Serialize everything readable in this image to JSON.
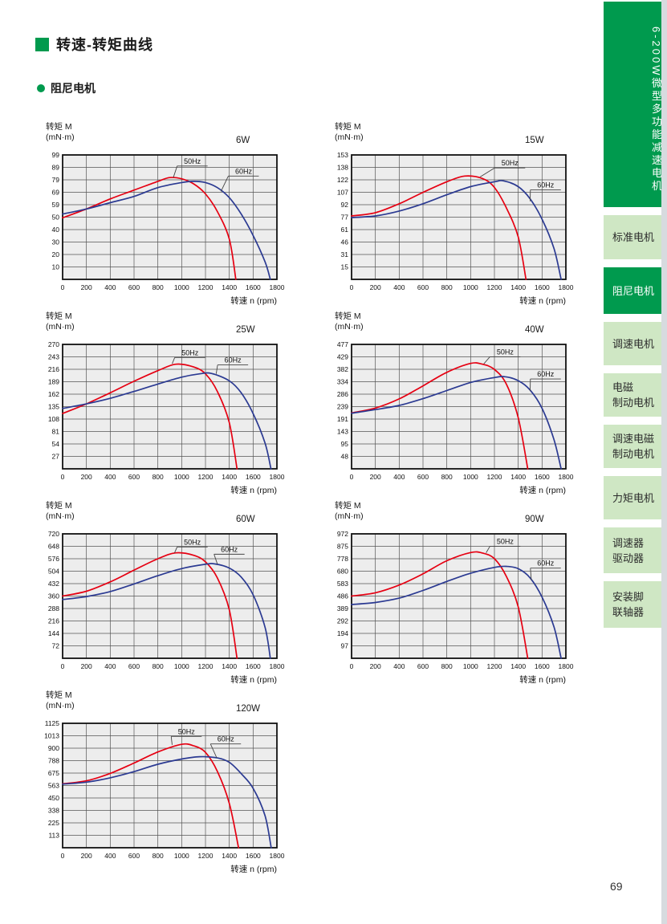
{
  "page": {
    "title": "转速-转矩曲线",
    "section": "阻尼电机",
    "page_number": "69"
  },
  "sidebar": {
    "vertical_title": "6-200W微型多功能减速电机",
    "items": [
      {
        "label": "标准电机",
        "lines": [
          "标准电机"
        ],
        "active": false
      },
      {
        "label": "阻尼电机",
        "lines": [
          "阻尼电机"
        ],
        "active": true
      },
      {
        "label": "调速电机",
        "lines": [
          "调速电机"
        ],
        "active": false
      },
      {
        "label": "电磁制动电机",
        "lines": [
          "电磁",
          "制动电机"
        ],
        "active": false
      },
      {
        "label": "调速电磁制动电机",
        "lines": [
          "调速电磁",
          "制动电机"
        ],
        "active": false
      },
      {
        "label": "力矩电机",
        "lines": [
          "力矩电机"
        ],
        "active": false
      },
      {
        "label": "调速器驱动器",
        "lines": [
          "调速器",
          "驱动器"
        ],
        "active": false
      },
      {
        "label": "安装脚联轴器",
        "lines": [
          "安装脚",
          "联轴器"
        ],
        "active": false
      }
    ]
  },
  "colors": {
    "green": "#009a4e",
    "light_green": "#cfe7c4",
    "red": "#e60012",
    "blue": "#2b3a92",
    "grid_bg": "#ededed",
    "grid_line": "#555555",
    "plot_border": "#111111",
    "strip": "#d7dbdf"
  },
  "charts_common": {
    "ylabel_line1": "转矩 M",
    "ylabel_line2": "(mN·m)",
    "xlabel": "转速 n (rpm)",
    "x_ticks": [
      0,
      200,
      400,
      600,
      800,
      1000,
      1200,
      1400,
      1600,
      1800
    ],
    "x_max": 1800,
    "legend": [
      "50Hz",
      "60Hz"
    ]
  },
  "chart_data": [
    {
      "type": "line",
      "title": "6W",
      "y_max": 99,
      "y_ticks": [
        99,
        89,
        79,
        69,
        59,
        50,
        40,
        30,
        20,
        10
      ],
      "series": [
        {
          "name": "50Hz",
          "color": "red",
          "points": [
            [
              0,
              49
            ],
            [
              200,
              56
            ],
            [
              400,
              64
            ],
            [
              600,
              71
            ],
            [
              800,
              78
            ],
            [
              900,
              81
            ],
            [
              1000,
              80
            ],
            [
              1100,
              76
            ],
            [
              1200,
              68
            ],
            [
              1300,
              54
            ],
            [
              1400,
              32
            ],
            [
              1455,
              0
            ]
          ]
        },
        {
          "name": "60Hz",
          "color": "blue",
          "points": [
            [
              0,
              52
            ],
            [
              200,
              56
            ],
            [
              400,
              61
            ],
            [
              600,
              66
            ],
            [
              800,
              73
            ],
            [
              1000,
              77
            ],
            [
              1100,
              78
            ],
            [
              1200,
              77
            ],
            [
              1300,
              73
            ],
            [
              1400,
              65
            ],
            [
              1500,
              52
            ],
            [
              1600,
              35
            ],
            [
              1700,
              14
            ],
            [
              1745,
              0
            ]
          ]
        }
      ],
      "labels": [
        {
          "text": "50Hz",
          "x": 1090,
          "y": 94,
          "tx": 930,
          "ty": 81
        },
        {
          "text": "60Hz",
          "x": 1520,
          "y": 86,
          "tx": 1330,
          "ty": 70
        }
      ]
    },
    {
      "type": "line",
      "title": "15W",
      "y_max": 153,
      "y_ticks": [
        153,
        138,
        122,
        107,
        92,
        77,
        61,
        46,
        31,
        15
      ],
      "series": [
        {
          "name": "50Hz",
          "color": "red",
          "points": [
            [
              0,
              78
            ],
            [
              200,
              82
            ],
            [
              400,
              93
            ],
            [
              600,
              107
            ],
            [
              800,
              120
            ],
            [
              950,
              127
            ],
            [
              1100,
              124
            ],
            [
              1200,
              113
            ],
            [
              1300,
              88
            ],
            [
              1400,
              52
            ],
            [
              1465,
              0
            ]
          ]
        },
        {
          "name": "60Hz",
          "color": "blue",
          "points": [
            [
              0,
              76
            ],
            [
              200,
              78
            ],
            [
              400,
              84
            ],
            [
              600,
              93
            ],
            [
              800,
              104
            ],
            [
              1000,
              114
            ],
            [
              1200,
              120
            ],
            [
              1280,
              121
            ],
            [
              1400,
              114
            ],
            [
              1500,
              99
            ],
            [
              1600,
              74
            ],
            [
              1700,
              38
            ],
            [
              1760,
              0
            ]
          ]
        }
      ],
      "labels": [
        {
          "text": "50Hz",
          "x": 1330,
          "y": 143,
          "tx": 1080,
          "ty": 126
        },
        {
          "text": "60Hz",
          "x": 1630,
          "y": 116,
          "tx": 1500,
          "ty": 96
        }
      ]
    },
    {
      "type": "line",
      "title": "25W",
      "y_max": 270,
      "y_ticks": [
        270,
        243,
        216,
        189,
        162,
        135,
        108,
        81,
        54,
        27
      ],
      "series": [
        {
          "name": "50Hz",
          "color": "red",
          "points": [
            [
              0,
              120
            ],
            [
              200,
              141
            ],
            [
              400,
              165
            ],
            [
              600,
              190
            ],
            [
              800,
              213
            ],
            [
              950,
              227
            ],
            [
              1100,
              221
            ],
            [
              1200,
              206
            ],
            [
              1300,
              168
            ],
            [
              1400,
              100
            ],
            [
              1465,
              0
            ]
          ]
        },
        {
          "name": "60Hz",
          "color": "blue",
          "points": [
            [
              0,
              131
            ],
            [
              200,
              141
            ],
            [
              400,
              153
            ],
            [
              600,
              168
            ],
            [
              800,
              184
            ],
            [
              1000,
              199
            ],
            [
              1150,
              206
            ],
            [
              1250,
              207
            ],
            [
              1400,
              191
            ],
            [
              1500,
              165
            ],
            [
              1600,
              120
            ],
            [
              1700,
              56
            ],
            [
              1750,
              0
            ]
          ]
        }
      ],
      "labels": [
        {
          "text": "50Hz",
          "x": 1070,
          "y": 252,
          "tx": 920,
          "ty": 228
        },
        {
          "text": "60Hz",
          "x": 1430,
          "y": 236,
          "tx": 1290,
          "ty": 206
        }
      ]
    },
    {
      "type": "line",
      "title": "40W",
      "y_max": 477,
      "y_ticks": [
        477,
        429,
        382,
        334,
        286,
        239,
        191,
        143,
        95,
        48
      ],
      "series": [
        {
          "name": "50Hz",
          "color": "red",
          "points": [
            [
              0,
              214
            ],
            [
              200,
              233
            ],
            [
              400,
              268
            ],
            [
              600,
              318
            ],
            [
              800,
              370
            ],
            [
              1000,
              404
            ],
            [
              1100,
              401
            ],
            [
              1200,
              381
            ],
            [
              1300,
              325
            ],
            [
              1400,
              195
            ],
            [
              1480,
              0
            ]
          ]
        },
        {
          "name": "60Hz",
          "color": "blue",
          "points": [
            [
              0,
              213
            ],
            [
              200,
              227
            ],
            [
              400,
              243
            ],
            [
              600,
              269
            ],
            [
              800,
              300
            ],
            [
              1000,
              331
            ],
            [
              1200,
              350
            ],
            [
              1290,
              353
            ],
            [
              1400,
              338
            ],
            [
              1500,
              302
            ],
            [
              1600,
              232
            ],
            [
              1700,
              112
            ],
            [
              1760,
              0
            ]
          ]
        }
      ],
      "labels": [
        {
          "text": "50Hz",
          "x": 1290,
          "y": 448,
          "tx": 1110,
          "ty": 402
        },
        {
          "text": "60Hz",
          "x": 1630,
          "y": 363,
          "tx": 1500,
          "ty": 298
        }
      ]
    },
    {
      "type": "line",
      "title": "60W",
      "y_max": 720,
      "y_ticks": [
        720,
        648,
        576,
        504,
        432,
        360,
        288,
        216,
        144,
        72
      ],
      "series": [
        {
          "name": "50Hz",
          "color": "red",
          "points": [
            [
              0,
              360
            ],
            [
              200,
              388
            ],
            [
              400,
              442
            ],
            [
              600,
              510
            ],
            [
              800,
              576
            ],
            [
              950,
              610
            ],
            [
              1100,
              596
            ],
            [
              1200,
              558
            ],
            [
              1300,
              465
            ],
            [
              1400,
              280
            ],
            [
              1465,
              0
            ]
          ]
        },
        {
          "name": "60Hz",
          "color": "blue",
          "points": [
            [
              0,
              340
            ],
            [
              200,
              357
            ],
            [
              400,
              386
            ],
            [
              600,
              430
            ],
            [
              800,
              478
            ],
            [
              1000,
              519
            ],
            [
              1200,
              544
            ],
            [
              1280,
              546
            ],
            [
              1400,
              522
            ],
            [
              1500,
              470
            ],
            [
              1600,
              368
            ],
            [
              1700,
              180
            ],
            [
              1745,
              0
            ]
          ]
        }
      ],
      "labels": [
        {
          "text": "50Hz",
          "x": 1090,
          "y": 672,
          "tx": 940,
          "ty": 610
        },
        {
          "text": "60Hz",
          "x": 1400,
          "y": 630,
          "tx": 1300,
          "ty": 545
        }
      ]
    },
    {
      "type": "line",
      "title": "90W",
      "y_max": 972,
      "y_ticks": [
        972,
        875,
        778,
        680,
        583,
        486,
        389,
        292,
        194,
        97
      ],
      "series": [
        {
          "name": "50Hz",
          "color": "red",
          "points": [
            [
              0,
              486
            ],
            [
              200,
              512
            ],
            [
              400,
              572
            ],
            [
              600,
              660
            ],
            [
              800,
              762
            ],
            [
              1000,
              826
            ],
            [
              1100,
              822
            ],
            [
              1200,
              778
            ],
            [
              1300,
              640
            ],
            [
              1400,
              400
            ],
            [
              1480,
              0
            ]
          ]
        },
        {
          "name": "60Hz",
          "color": "blue",
          "points": [
            [
              0,
              420
            ],
            [
              200,
              436
            ],
            [
              400,
              470
            ],
            [
              600,
              530
            ],
            [
              800,
              600
            ],
            [
              1000,
              664
            ],
            [
              1200,
              710
            ],
            [
              1300,
              718
            ],
            [
              1400,
              700
            ],
            [
              1500,
              628
            ],
            [
              1600,
              478
            ],
            [
              1700,
              245
            ],
            [
              1760,
              0
            ]
          ]
        }
      ],
      "labels": [
        {
          "text": "50Hz",
          "x": 1290,
          "y": 912,
          "tx": 1130,
          "ty": 824
        },
        {
          "text": "60Hz",
          "x": 1630,
          "y": 742,
          "tx": 1510,
          "ty": 610
        }
      ]
    },
    {
      "type": "line",
      "title": "120W",
      "y_max": 1125,
      "y_ticks": [
        1125,
        1013,
        900,
        788,
        675,
        563,
        450,
        338,
        225,
        113
      ],
      "series": [
        {
          "name": "50Hz",
          "color": "red",
          "points": [
            [
              0,
              578
            ],
            [
              200,
              605
            ],
            [
              400,
              672
            ],
            [
              600,
              766
            ],
            [
              800,
              866
            ],
            [
              1000,
              935
            ],
            [
              1100,
              922
            ],
            [
              1200,
              862
            ],
            [
              1300,
              690
            ],
            [
              1400,
              400
            ],
            [
              1478,
              0
            ]
          ]
        },
        {
          "name": "60Hz",
          "color": "blue",
          "points": [
            [
              0,
              575
            ],
            [
              200,
              593
            ],
            [
              400,
              632
            ],
            [
              600,
              688
            ],
            [
              800,
              755
            ],
            [
              1000,
              802
            ],
            [
              1150,
              823
            ],
            [
              1300,
              812
            ],
            [
              1400,
              772
            ],
            [
              1500,
              670
            ],
            [
              1600,
              538
            ],
            [
              1700,
              290
            ],
            [
              1752,
              0
            ]
          ]
        }
      ],
      "labels": [
        {
          "text": "50Hz",
          "x": 1040,
          "y": 1050,
          "tx": 920,
          "ty": 930
        },
        {
          "text": "60Hz",
          "x": 1370,
          "y": 982,
          "tx": 1295,
          "ty": 812
        }
      ]
    }
  ]
}
